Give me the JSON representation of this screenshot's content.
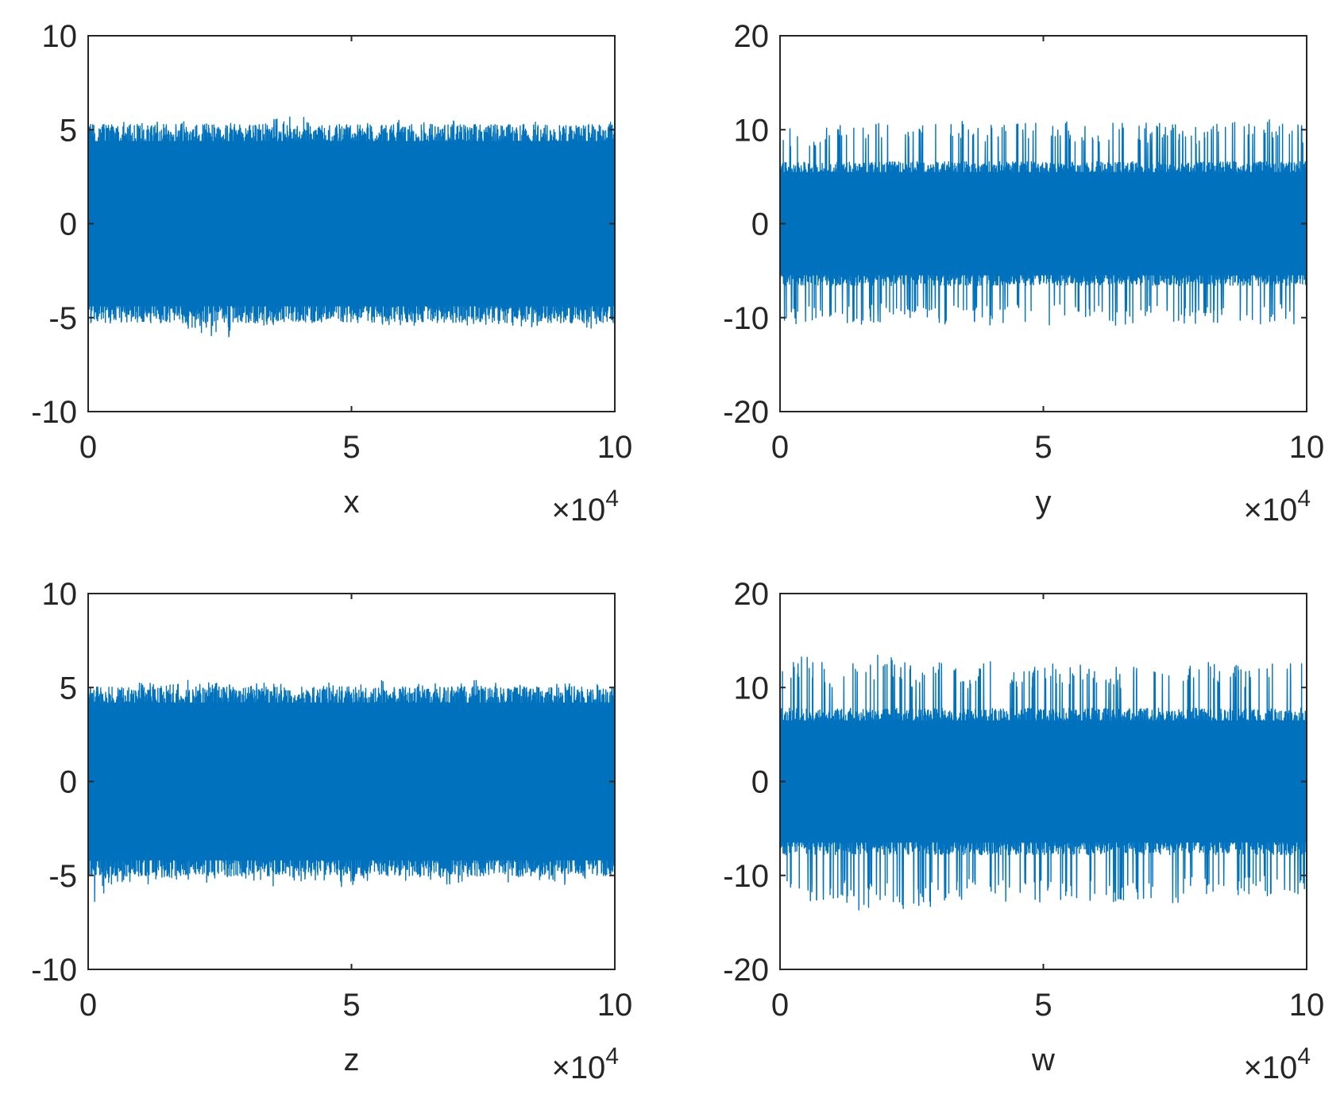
{
  "chart_data": [
    {
      "type": "line",
      "xlabel": "x",
      "x_exponent": "×10",
      "x_exponent_power": "4",
      "xlim": [
        0,
        10
      ],
      "ylim": [
        -10,
        10
      ],
      "xticks": [
        "0",
        "5",
        "10"
      ],
      "yticks": [
        "-10",
        "-5",
        "0",
        "5",
        "10"
      ],
      "xtick_values": [
        0,
        5,
        10
      ],
      "ytick_values": [
        -10,
        -5,
        0,
        5,
        10
      ],
      "grid": false,
      "color": "#0072BD",
      "series": [
        {
          "n_samples": 100000,
          "envelope_upper": [
            5.5,
            5.3,
            5.6,
            5.4,
            5.5,
            5.3,
            5.4,
            5.6,
            5.8,
            5.4,
            5.5,
            5.3,
            5.6,
            5.4,
            5.5,
            5.4,
            5.3,
            5.5,
            5.6,
            5.4,
            5.5
          ],
          "envelope_lower": [
            -5.3,
            -5.5,
            -5.4,
            -5.5,
            -5.6,
            -6.7,
            -5.4,
            -5.5,
            -5.3,
            -5.6,
            -5.5,
            -5.4,
            -5.8,
            -5.3,
            -5.5,
            -5.4,
            -5.6,
            -5.5,
            -5.4,
            -5.6,
            -5.3
          ],
          "core_half_width": 4.4
        }
      ]
    },
    {
      "type": "line",
      "xlabel": "y",
      "x_exponent": "×10",
      "x_exponent_power": "4",
      "xlim": [
        0,
        10
      ],
      "ylim": [
        -20,
        20
      ],
      "xticks": [
        "0",
        "5",
        "10"
      ],
      "yticks": [
        "-20",
        "-10",
        "0",
        "10",
        "20"
      ],
      "xtick_values": [
        0,
        5,
        10
      ],
      "ytick_values": [
        -20,
        -10,
        0,
        10,
        20
      ],
      "grid": false,
      "color": "#0072BD",
      "series": [
        {
          "n_samples": 100000,
          "envelope_upper": [
            10.5,
            9.8,
            10.8,
            10.2,
            11,
            10.5,
            10.8,
            11,
            10.5,
            10.9,
            10.6,
            10.9,
            10.4,
            11,
            10.7,
            10.9,
            10.5,
            11.2,
            10.8,
            11.3,
            10.5
          ],
          "envelope_lower": [
            -10.5,
            -10.8,
            -10.2,
            -10.9,
            -10.5,
            -10.8,
            -11,
            -10.4,
            -10.9,
            -10.6,
            -11,
            -10.5,
            -10.8,
            -10.9,
            -10.4,
            -10.8,
            -11,
            -10.5,
            -10.9,
            -10.6,
            -11.2
          ],
          "core_half_width": 5.5
        }
      ]
    },
    {
      "type": "line",
      "xlabel": "z",
      "x_exponent": "×10",
      "x_exponent_power": "4",
      "xlim": [
        0,
        10
      ],
      "ylim": [
        -10,
        10
      ],
      "xticks": [
        "0",
        "5",
        "10"
      ],
      "yticks": [
        "-10",
        "-5",
        "0",
        "5",
        "10"
      ],
      "xtick_values": [
        0,
        5,
        10
      ],
      "ytick_values": [
        -10,
        -5,
        0,
        5,
        10
      ],
      "grid": false,
      "color": "#0072BD",
      "series": [
        {
          "n_samples": 100000,
          "envelope_upper": [
            5.2,
            5,
            5.3,
            5.1,
            5.6,
            5.2,
            5.4,
            5.5,
            5.2,
            5.3,
            5.1,
            5.5,
            5.3,
            5.2,
            5.4,
            5.5,
            5.3,
            5.1,
            5.2,
            5.3,
            5.1
          ],
          "envelope_lower": [
            -7,
            -5.3,
            -5.5,
            -5.4,
            -5.3,
            -5.5,
            -5.4,
            -5.6,
            -5.3,
            -5.5,
            -5.8,
            -5.4,
            -5.5,
            -5.3,
            -5.6,
            -5.4,
            -5.5,
            -5.3,
            -5.6,
            -5.4,
            -5.2
          ],
          "core_half_width": 4.2
        }
      ]
    },
    {
      "type": "line",
      "xlabel": "w",
      "x_exponent": "×10",
      "x_exponent_power": "4",
      "xlim": [
        0,
        10
      ],
      "ylim": [
        -20,
        20
      ],
      "xticks": [
        "0",
        "5",
        "10"
      ],
      "yticks": [
        "-20",
        "-10",
        "0",
        "10",
        "20"
      ],
      "xtick_values": [
        0,
        5,
        10
      ],
      "ytick_values": [
        -20,
        -10,
        0,
        10,
        20
      ],
      "grid": false,
      "color": "#0072BD",
      "series": [
        {
          "n_samples": 100000,
          "envelope_upper": [
            12.5,
            13.8,
            12,
            12.8,
            14,
            12.5,
            13,
            12.2,
            12.8,
            12,
            12.7,
            12.4,
            12.9,
            12.3,
            12.5,
            12.1,
            12.9,
            12.3,
            12.6,
            13,
            12.5
          ],
          "envelope_lower": [
            -13,
            -13.5,
            -12.5,
            -13.8,
            -12.8,
            -14.2,
            -13,
            -12.5,
            -13.2,
            -12.7,
            -13,
            -12.5,
            -13.3,
            -12.8,
            -12.6,
            -13,
            -12.4,
            -12.9,
            -12.5,
            -12.3,
            -12.8
          ],
          "core_half_width": 6.5
        }
      ]
    }
  ]
}
